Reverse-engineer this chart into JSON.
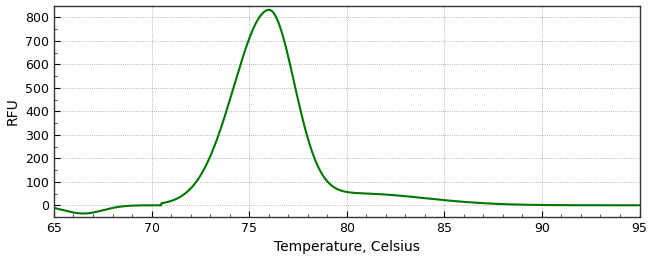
{
  "title": "",
  "xlabel": "Temperature, Celsius",
  "ylabel": "RFU",
  "xlabel_fontsize": 10,
  "ylabel_fontsize": 10,
  "tick_label_color": "#000000",
  "axis_label_color": "#000000",
  "line_color": "#007700",
  "line_width": 1.5,
  "xlim": [
    65,
    95
  ],
  "ylim": [
    -50,
    850
  ],
  "xticks": [
    65,
    70,
    75,
    80,
    85,
    90,
    95
  ],
  "yticks": [
    0,
    100,
    200,
    300,
    400,
    500,
    600,
    700,
    800
  ],
  "grid_color": "#888888",
  "background_color": "#ffffff",
  "spine_color": "#333333",
  "peak_temp": 76.0,
  "peak_value": 810,
  "curve_left_start": 65,
  "curve_right_end": 95
}
